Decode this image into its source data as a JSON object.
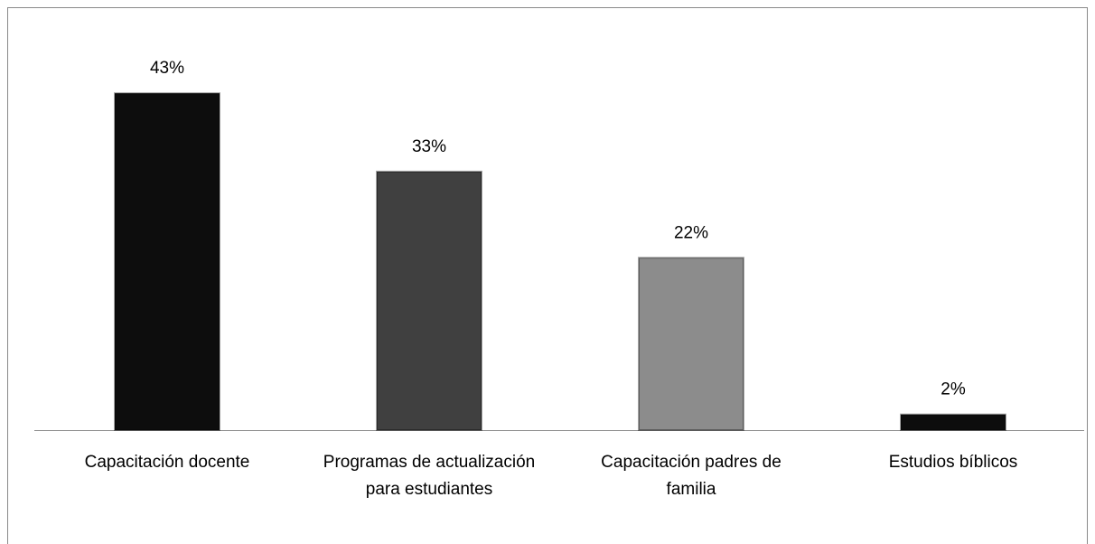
{
  "chart_data": {
    "type": "bar",
    "categories": [
      "Capacitación docente",
      "Programas de actualización para estudiantes",
      "Capacitación padres de familia",
      "Estudios bíblicos"
    ],
    "values": [
      43,
      33,
      22,
      2
    ],
    "value_labels": [
      "43%",
      "33%",
      "22%",
      "2%"
    ],
    "colors": [
      "#0d0d0d",
      "#404040",
      "#8c8c8c",
      "#0d0d0d"
    ],
    "grid": false
  }
}
